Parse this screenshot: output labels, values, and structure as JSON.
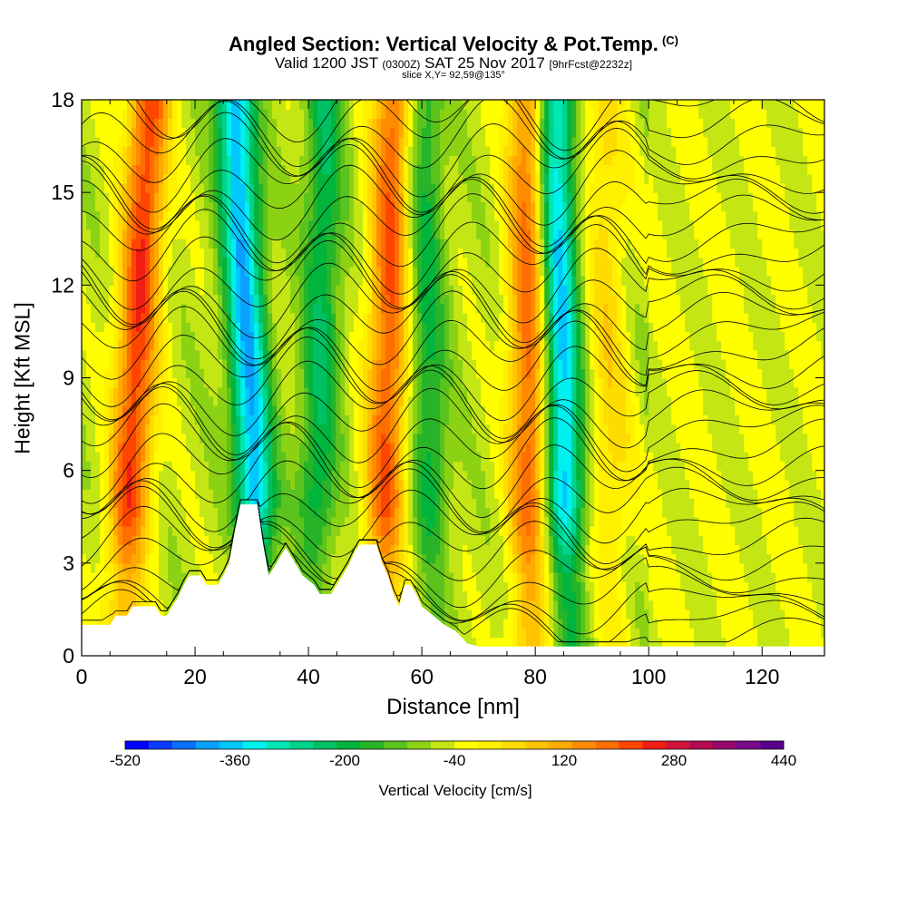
{
  "header": {
    "title": "Angled Section: Vertical Velocity & Pot.Temp.",
    "title_suffix": "(C)",
    "valid_prefix": "Valid 1200 JST",
    "valid_utc": "(0300Z)",
    "valid_date": "SAT 25 Nov 2017",
    "forecast_tag": "[9hrFcst@2232z]",
    "slice": "slice X,Y= 92,59@135°"
  },
  "chart_data": {
    "type": "heatmap",
    "xlabel": "Distance [nm]",
    "ylabel": "Height [Kft MSL]",
    "xlim": [
      0,
      131
    ],
    "ylim": [
      0,
      18
    ],
    "xticks": [
      0,
      20,
      40,
      60,
      80,
      100,
      120
    ],
    "yticks": [
      0,
      3,
      6,
      9,
      12,
      15,
      18
    ],
    "colorbar": {
      "label": "Vertical Velocity [cm/s]",
      "tick_labels": [
        "-520",
        "-360",
        "-200",
        "-40",
        "120",
        "280",
        "440"
      ],
      "ticks": [
        -520,
        -360,
        -200,
        -40,
        120,
        280,
        440
      ],
      "range": [
        -520,
        440
      ],
      "step": 40,
      "colors": [
        "#0000ff",
        "#0a3cff",
        "#0a6eff",
        "#0aa0ff",
        "#00c8ff",
        "#00f0f0",
        "#00e6b4",
        "#00d28c",
        "#00c064",
        "#00b43c",
        "#28b428",
        "#5ac31e",
        "#8cd214",
        "#c3e614",
        "#ffff00",
        "#fff000",
        "#ffdc00",
        "#ffc300",
        "#ffaa00",
        "#ff8c00",
        "#ff6e00",
        "#ff4600",
        "#f01e14",
        "#d2143c",
        "#b40a50",
        "#960a6e",
        "#780a8c",
        "#5a008c"
      ]
    },
    "updrafts": [
      {
        "x_low": 7,
        "x_high": 12,
        "peak": 330
      },
      {
        "x_low": 53,
        "x_high": 55,
        "peak": 300
      },
      {
        "x_low": 79,
        "x_high": 79,
        "peak": 300
      },
      {
        "x_low": 94,
        "x_high": 92,
        "peak": 120
      }
    ],
    "downdrafts": [
      {
        "x_low": 32,
        "x_high": 27,
        "peak": -380
      },
      {
        "x_low": 86,
        "x_high": 83,
        "peak": -380
      },
      {
        "x_low": 41,
        "x_high": 43,
        "peak": -180
      },
      {
        "x_low": 62,
        "x_high": 60,
        "peak": -160
      }
    ],
    "terrain": [
      {
        "x": 0,
        "h": 1.0
      },
      {
        "x": 5,
        "h": 1.0
      },
      {
        "x": 6,
        "h": 1.3
      },
      {
        "x": 8,
        "h": 1.3
      },
      {
        "x": 9,
        "h": 1.6
      },
      {
        "x": 13,
        "h": 1.6
      },
      {
        "x": 14,
        "h": 1.3
      },
      {
        "x": 15,
        "h": 1.3
      },
      {
        "x": 16,
        "h": 1.6
      },
      {
        "x": 17,
        "h": 1.9
      },
      {
        "x": 18,
        "h": 2.3
      },
      {
        "x": 19,
        "h": 2.6
      },
      {
        "x": 21,
        "h": 2.6
      },
      {
        "x": 22,
        "h": 2.3
      },
      {
        "x": 24,
        "h": 2.3
      },
      {
        "x": 25,
        "h": 2.6
      },
      {
        "x": 26,
        "h": 3.0
      },
      {
        "x": 27,
        "h": 4.0
      },
      {
        "x": 28,
        "h": 4.9
      },
      {
        "x": 31,
        "h": 4.9
      },
      {
        "x": 32,
        "h": 3.6
      },
      {
        "x": 33,
        "h": 2.6
      },
      {
        "x": 34,
        "h": 2.9
      },
      {
        "x": 35,
        "h": 3.2
      },
      {
        "x": 36,
        "h": 3.5
      },
      {
        "x": 37,
        "h": 3.2
      },
      {
        "x": 38,
        "h": 2.9
      },
      {
        "x": 39,
        "h": 2.6
      },
      {
        "x": 41,
        "h": 2.3
      },
      {
        "x": 42,
        "h": 2.0
      },
      {
        "x": 44,
        "h": 2.0
      },
      {
        "x": 45,
        "h": 2.3
      },
      {
        "x": 46,
        "h": 2.6
      },
      {
        "x": 47,
        "h": 2.9
      },
      {
        "x": 48,
        "h": 3.3
      },
      {
        "x": 49,
        "h": 3.6
      },
      {
        "x": 52,
        "h": 3.6
      },
      {
        "x": 53,
        "h": 3.0
      },
      {
        "x": 54,
        "h": 2.6
      },
      {
        "x": 55,
        "h": 2.0
      },
      {
        "x": 56,
        "h": 1.6
      },
      {
        "x": 57,
        "h": 2.3
      },
      {
        "x": 58,
        "h": 2.3
      },
      {
        "x": 59,
        "h": 2.0
      },
      {
        "x": 60,
        "h": 1.6
      },
      {
        "x": 62,
        "h": 1.3
      },
      {
        "x": 64,
        "h": 1.0
      },
      {
        "x": 66,
        "h": 0.8
      },
      {
        "x": 67,
        "h": 0.6
      },
      {
        "x": 68,
        "h": 0.4
      },
      {
        "x": 70,
        "h": 0.3
      },
      {
        "x": 131,
        "h": 0.3
      }
    ]
  }
}
